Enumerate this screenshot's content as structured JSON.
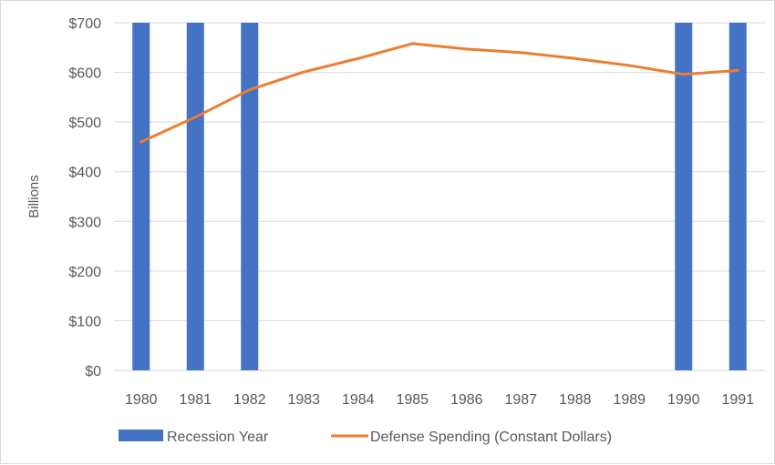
{
  "chart_data": {
    "type": "bar+line",
    "title": "",
    "xlabel": "",
    "ylabel": "Billions",
    "ylim": [
      0,
      700
    ],
    "yticks": [
      0,
      100,
      200,
      300,
      400,
      500,
      600,
      700
    ],
    "ytick_labels": [
      "$0",
      "$100",
      "$200",
      "$300",
      "$400",
      "$500",
      "$600",
      "$700"
    ],
    "grid": true,
    "legend_position": "bottom",
    "categories": [
      "1980",
      "1981",
      "1982",
      "1983",
      "1984",
      "1985",
      "1986",
      "1987",
      "1988",
      "1989",
      "1990",
      "1991"
    ],
    "series": [
      {
        "name": "Recession Year",
        "type": "bar",
        "color": "#4472C4",
        "values": [
          700,
          700,
          700,
          0,
          0,
          0,
          0,
          0,
          0,
          0,
          700,
          700
        ]
      },
      {
        "name": "Defense Spending (Constant Dollars)",
        "type": "line",
        "color": "#ED7D31",
        "values": [
          460,
          510,
          565,
          601,
          628,
          658,
          647,
          640,
          628,
          614,
          596,
          604
        ]
      }
    ]
  }
}
